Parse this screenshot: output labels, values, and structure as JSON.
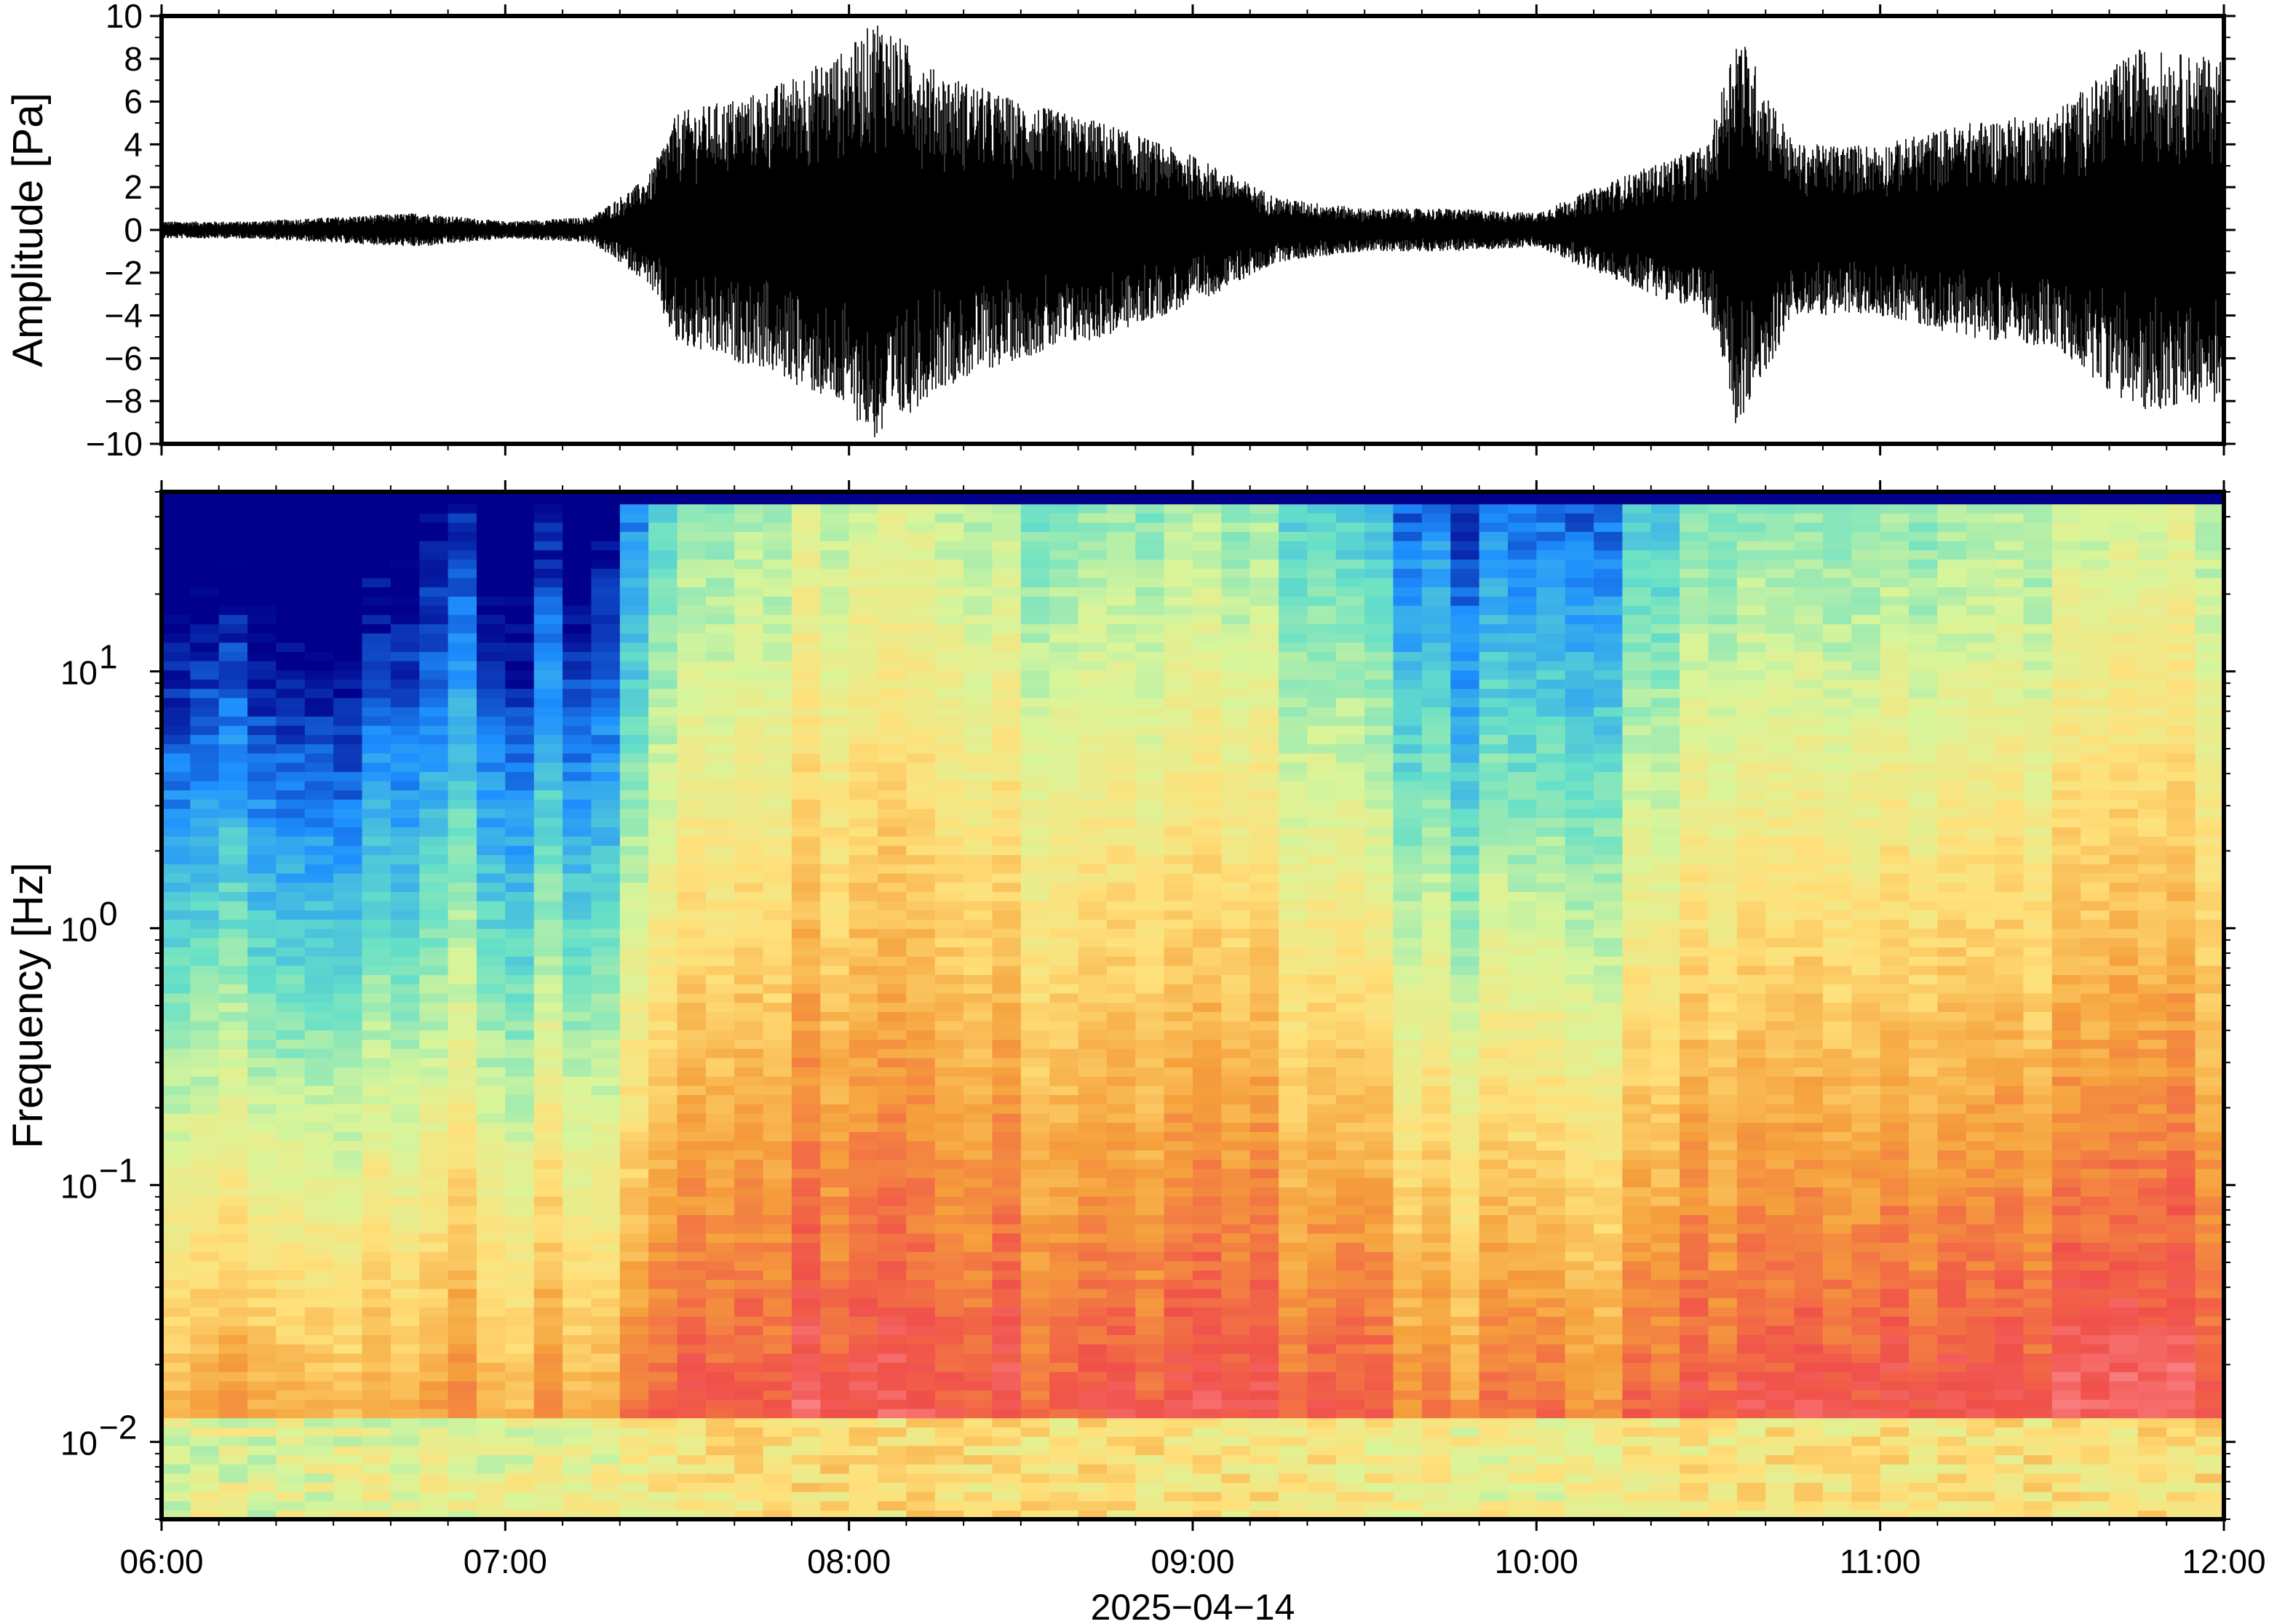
{
  "chart_data": [
    {
      "type": "line",
      "ylabel": "Amplitude [Pa]",
      "ylim": [
        -10,
        10
      ],
      "y_ticks": [
        -10,
        -8,
        -6,
        -4,
        -2,
        0,
        2,
        4,
        6,
        8,
        10
      ],
      "y_tick_labels": [
        "−10",
        "−8",
        "−6",
        "−4",
        "−2",
        "0",
        "2",
        "4",
        "6",
        "8",
        "10"
      ],
      "xlim": [
        "06:00",
        "12:00"
      ],
      "grid": false,
      "series": [
        {
          "x": [
            "06:00",
            "06:15",
            "06:30",
            "06:45",
            "07:00",
            "07:15",
            "07:25",
            "07:30",
            "07:45",
            "08:00",
            "08:05",
            "08:15",
            "08:30",
            "08:45",
            "09:00",
            "09:15",
            "09:30",
            "09:45",
            "10:00",
            "10:15",
            "10:30",
            "10:35",
            "10:45",
            "11:00",
            "11:15",
            "11:30",
            "11:45",
            "12:00"
          ],
          "values": [
            0.4,
            0.4,
            0.6,
            0.8,
            0.4,
            0.6,
            2.5,
            5.5,
            6.5,
            8.5,
            10,
            7.5,
            6,
            5,
            3.5,
            1.5,
            1,
            1,
            0.8,
            2.5,
            4,
            9.5,
            4,
            4,
            5,
            5.5,
            8.5,
            8
          ],
          "fill": "envelope"
        }
      ]
    },
    {
      "type": "heatmap",
      "ylabel": "Frequency [Hz]",
      "xlabel": "2025−04−14",
      "y_scale": "log",
      "ylim": [
        0.005,
        50
      ],
      "y_ticks": [
        0.01,
        0.1,
        1,
        10
      ],
      "x_ticks": [
        "06:00",
        "07:00",
        "08:00",
        "09:00",
        "10:00",
        "11:00",
        "12:00"
      ],
      "colormap": "spectral",
      "colors": [
        "#00008b",
        "#1e90ff",
        "#66e0c8",
        "#d8f59a",
        "#ffe07a",
        "#f5a13c",
        "#f0504a",
        "#ff9aa0"
      ],
      "x_hours": [
        6,
        6.5,
        6.75,
        7,
        7.25,
        7.5,
        8,
        8.25,
        8.5,
        9,
        9.25,
        9.5,
        9.75,
        10,
        10.25,
        10.5,
        11,
        11.5,
        12
      ],
      "intensity": [
        0.25,
        0.2,
        0.35,
        0.3,
        0.3,
        0.7,
        0.85,
        0.85,
        0.75,
        0.75,
        0.7,
        0.55,
        0.45,
        0.4,
        0.55,
        0.7,
        0.7,
        0.75,
        0.8
      ]
    }
  ]
}
